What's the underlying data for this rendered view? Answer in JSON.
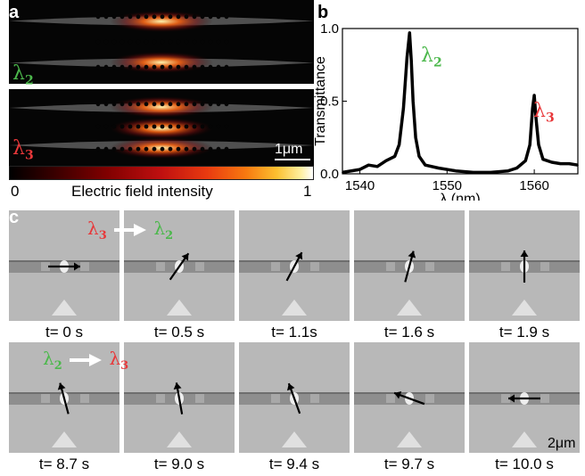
{
  "panel_a": {
    "letter": "a",
    "top_lambda": {
      "symbol": "λ",
      "sub": "2",
      "color": "#4cb84c"
    },
    "bottom_lambda": {
      "symbol": "λ",
      "sub": "3",
      "color": "#e8383a"
    },
    "scale_label": "1μm",
    "colorbar": {
      "min_label": "0",
      "max_label": "1",
      "label": "Electric field intensity"
    }
  },
  "panel_b": {
    "letter": "b",
    "peak2_label": {
      "symbol": "λ",
      "sub": "2",
      "color": "#4cb84c"
    },
    "peak3_label": {
      "symbol": "λ",
      "sub": "3",
      "color": "#e8383a"
    }
  },
  "chart_data": {
    "type": "line",
    "title": "",
    "xlabel": "λ (nm)",
    "ylabel": "Transmittance",
    "xlim": [
      1538,
      1565
    ],
    "ylim": [
      0,
      1.0
    ],
    "xticks": [
      "1540",
      "1550",
      "1560"
    ],
    "yticks": [
      "0.0",
      "0.5",
      "1.0"
    ],
    "series": [
      {
        "color": "#000000",
        "x": [
          1538,
          1540,
          1541,
          1542,
          1543,
          1544,
          1544.5,
          1545,
          1545.4,
          1545.7,
          1545.9,
          1546.1,
          1546.4,
          1546.8,
          1547.5,
          1549,
          1551,
          1553,
          1555,
          1557,
          1558,
          1559,
          1559.5,
          1559.8,
          1560,
          1560.2,
          1560.5,
          1561,
          1562,
          1563,
          1564,
          1565
        ],
        "y": [
          0.01,
          0.03,
          0.06,
          0.05,
          0.09,
          0.12,
          0.2,
          0.45,
          0.8,
          0.97,
          0.78,
          0.5,
          0.25,
          0.12,
          0.06,
          0.04,
          0.02,
          0.01,
          0.01,
          0.02,
          0.04,
          0.09,
          0.2,
          0.45,
          0.54,
          0.38,
          0.2,
          0.1,
          0.08,
          0.07,
          0.07,
          0.06
        ]
      }
    ]
  },
  "panel_c": {
    "letter": "c",
    "row1_label": {
      "from_sym": "λ",
      "from_sub": "3",
      "from_color": "#e8383a",
      "to_sym": "λ",
      "to_sub": "2",
      "to_color": "#4cb84c"
    },
    "row2_label": {
      "from_sym": "λ",
      "from_sub": "2",
      "from_color": "#4cb84c",
      "to_sym": "λ",
      "to_sub": "3",
      "to_color": "#e8383a"
    },
    "scale_label": "2μm",
    "frames": [
      {
        "time": "t= 0 s",
        "angle_deg": 0
      },
      {
        "time": "t= 0.5 s",
        "angle_deg": 55
      },
      {
        "time": "t= 1.1s",
        "angle_deg": 62
      },
      {
        "time": "t= 1.6 s",
        "angle_deg": 75
      },
      {
        "time": "t= 1.9 s",
        "angle_deg": 90
      },
      {
        "time": "t= 8.7 s",
        "angle_deg": 105
      },
      {
        "time": "t= 9.0 s",
        "angle_deg": 100
      },
      {
        "time": "t= 9.4 s",
        "angle_deg": 110
      },
      {
        "time": "t= 9.7 s",
        "angle_deg": 160
      },
      {
        "time": "t= 10.0 s",
        "angle_deg": 180
      }
    ]
  }
}
